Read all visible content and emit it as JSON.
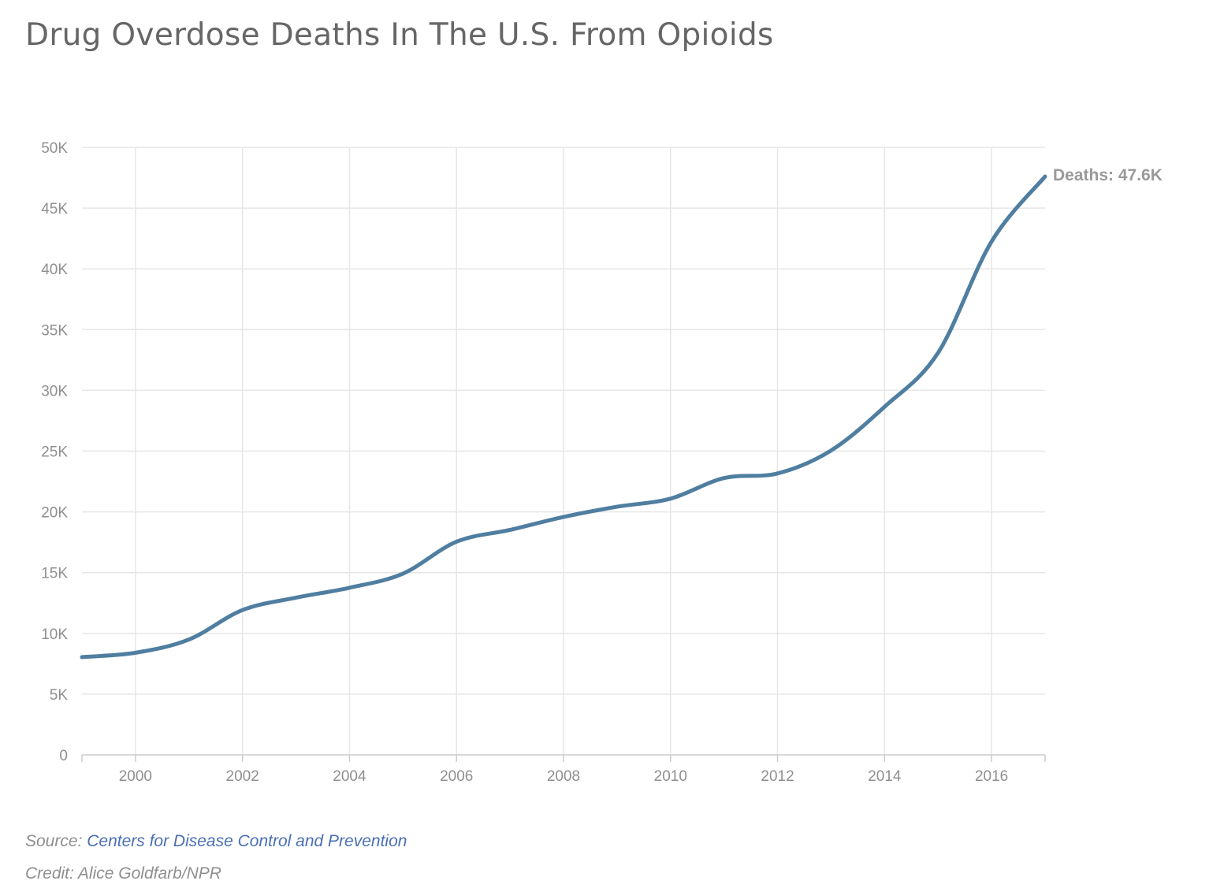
{
  "page": {
    "title": "Drug Overdose Deaths In The U.S. From Opioids",
    "source_prefix": "Source: ",
    "source_link": "Centers for Disease Control and Prevention",
    "credit": "Credit: Alice Goldfarb/NPR"
  },
  "colors": {
    "line": "#4f7ea0",
    "grid": "#e6e6e6",
    "axis": "#cccccc"
  },
  "chart_data": {
    "type": "line",
    "title": "Drug Overdose Deaths In The U.S. From Opioids",
    "xlabel": "",
    "ylabel": "",
    "xlim": [
      1999,
      2017
    ],
    "ylim": [
      0,
      50000
    ],
    "grid": true,
    "x_ticks": [
      2000,
      2002,
      2004,
      2006,
      2008,
      2010,
      2012,
      2014,
      2016
    ],
    "x_tick_labels": [
      "2000",
      "2002",
      "2004",
      "2006",
      "2008",
      "2010",
      "2012",
      "2014",
      "2016"
    ],
    "y_ticks": [
      0,
      5000,
      10000,
      15000,
      20000,
      25000,
      30000,
      35000,
      40000,
      45000,
      50000
    ],
    "y_tick_labels": [
      "0",
      "5K",
      "10K",
      "15K",
      "20K",
      "25K",
      "30K",
      "35K",
      "40K",
      "45K",
      "50K"
    ],
    "series": [
      {
        "x": [
          1999,
          2000,
          2001,
          2002,
          2003,
          2004,
          2005,
          2006,
          2007,
          2008,
          2009,
          2010,
          2011,
          2012,
          2013,
          2014,
          2015,
          2016,
          2017
        ],
        "values": [
          8050,
          8407,
          9496,
          11920,
          12940,
          13756,
          14918,
          17545,
          18516,
          19582,
          20422,
          21089,
          22784,
          23166,
          25052,
          28647,
          33091,
          42249,
          47600
        ]
      }
    ],
    "end_label": "Deaths: 47.6K"
  }
}
